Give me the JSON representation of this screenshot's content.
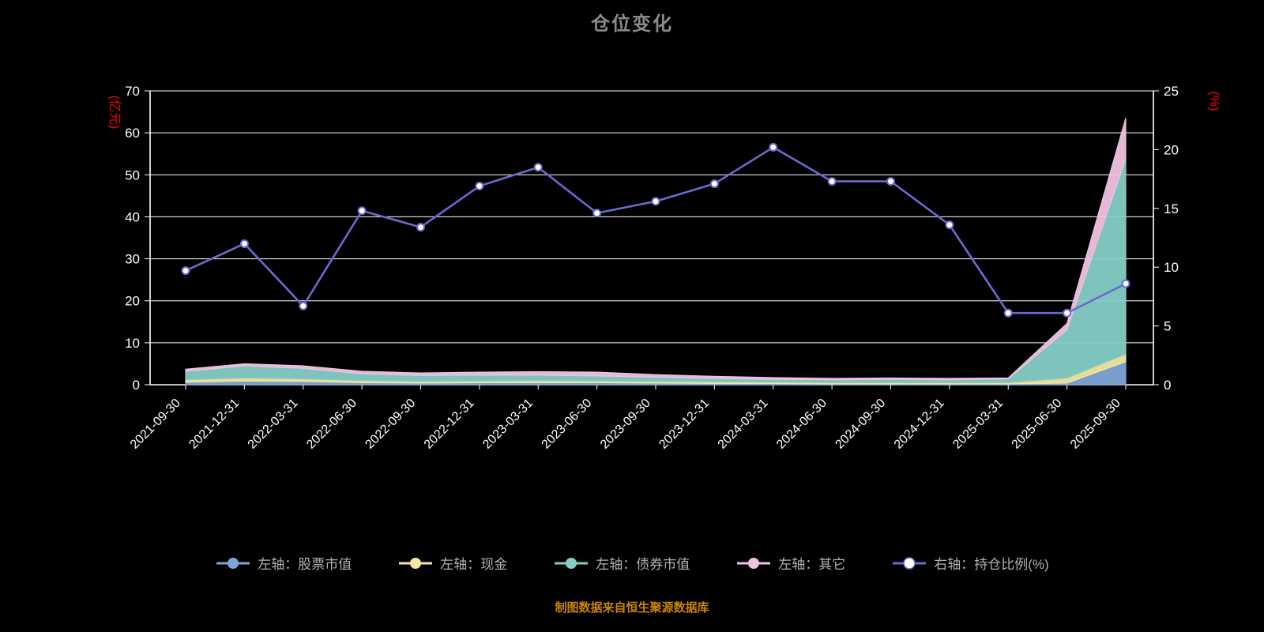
{
  "chart_data": {
    "type": "area",
    "title": "仓位变化",
    "source_note": "制图数据来自恒生聚源数据库",
    "grid": true,
    "legend_position": "bottom",
    "background_color": "#000000",
    "grid_color": "#ffffff",
    "tick_label_color": "#ffffff",
    "left_axis": {
      "label": "(亿元)",
      "label_color": "#ff0000",
      "min": 0,
      "max": 70,
      "tick_step": 10
    },
    "right_axis": {
      "label": "(%)",
      "label_color": "#ff0000",
      "min": 0,
      "max": 25,
      "tick_step": 5
    },
    "categories": [
      "2021-09-30",
      "2021-12-31",
      "2022-03-31",
      "2022-06-30",
      "2022-09-30",
      "2022-12-31",
      "2023-03-31",
      "2023-06-30",
      "2023-09-30",
      "2023-12-31",
      "2024-03-31",
      "2024-06-30",
      "2024-09-30",
      "2024-12-31",
      "2025-03-31",
      "2025-06-30",
      "2025-09-30"
    ],
    "series": [
      {
        "name": "左轴：股票市值",
        "type": "area-stacked",
        "axis": "left",
        "color": "#7ea6d8",
        "values": [
          0.6,
          0.9,
          0.8,
          0.5,
          0.4,
          0.5,
          0.5,
          0.5,
          0.4,
          0.3,
          0.3,
          0.2,
          0.2,
          0.2,
          0.2,
          0.4,
          5.5
        ]
      },
      {
        "name": "左轴：现金",
        "type": "area-stacked",
        "axis": "left",
        "color": "#f6e8a0",
        "values": [
          0.6,
          0.7,
          0.6,
          0.5,
          0.4,
          0.4,
          0.5,
          0.4,
          0.4,
          0.4,
          0.3,
          0.3,
          0.3,
          0.3,
          0.3,
          1.2,
          1.8
        ]
      },
      {
        "name": "左轴：债券市值",
        "type": "area-stacked",
        "axis": "left",
        "color": "#85cfc6",
        "values": [
          2.0,
          2.9,
          2.5,
          1.6,
          1.4,
          1.4,
          1.3,
          1.2,
          1.0,
          0.8,
          0.7,
          0.7,
          0.8,
          0.7,
          0.9,
          11.5,
          46.5
        ]
      },
      {
        "name": "左轴：其它",
        "type": "area-stacked",
        "axis": "left",
        "color": "#f0c3e0",
        "values": [
          0.5,
          0.5,
          0.6,
          0.6,
          0.6,
          0.7,
          0.8,
          0.9,
          0.6,
          0.5,
          0.4,
          0.3,
          0.3,
          0.3,
          0.2,
          1.5,
          9.7
        ]
      },
      {
        "name": "右轴：持仓比例(%)",
        "type": "line",
        "axis": "right",
        "color": "#6a69d1",
        "marker_fill": "#ffffff",
        "values": [
          9.7,
          12.0,
          6.7,
          14.8,
          13.4,
          16.9,
          18.5,
          14.6,
          15.6,
          17.1,
          20.2,
          17.3,
          17.3,
          13.6,
          6.1,
          6.1,
          8.6
        ]
      }
    ]
  }
}
